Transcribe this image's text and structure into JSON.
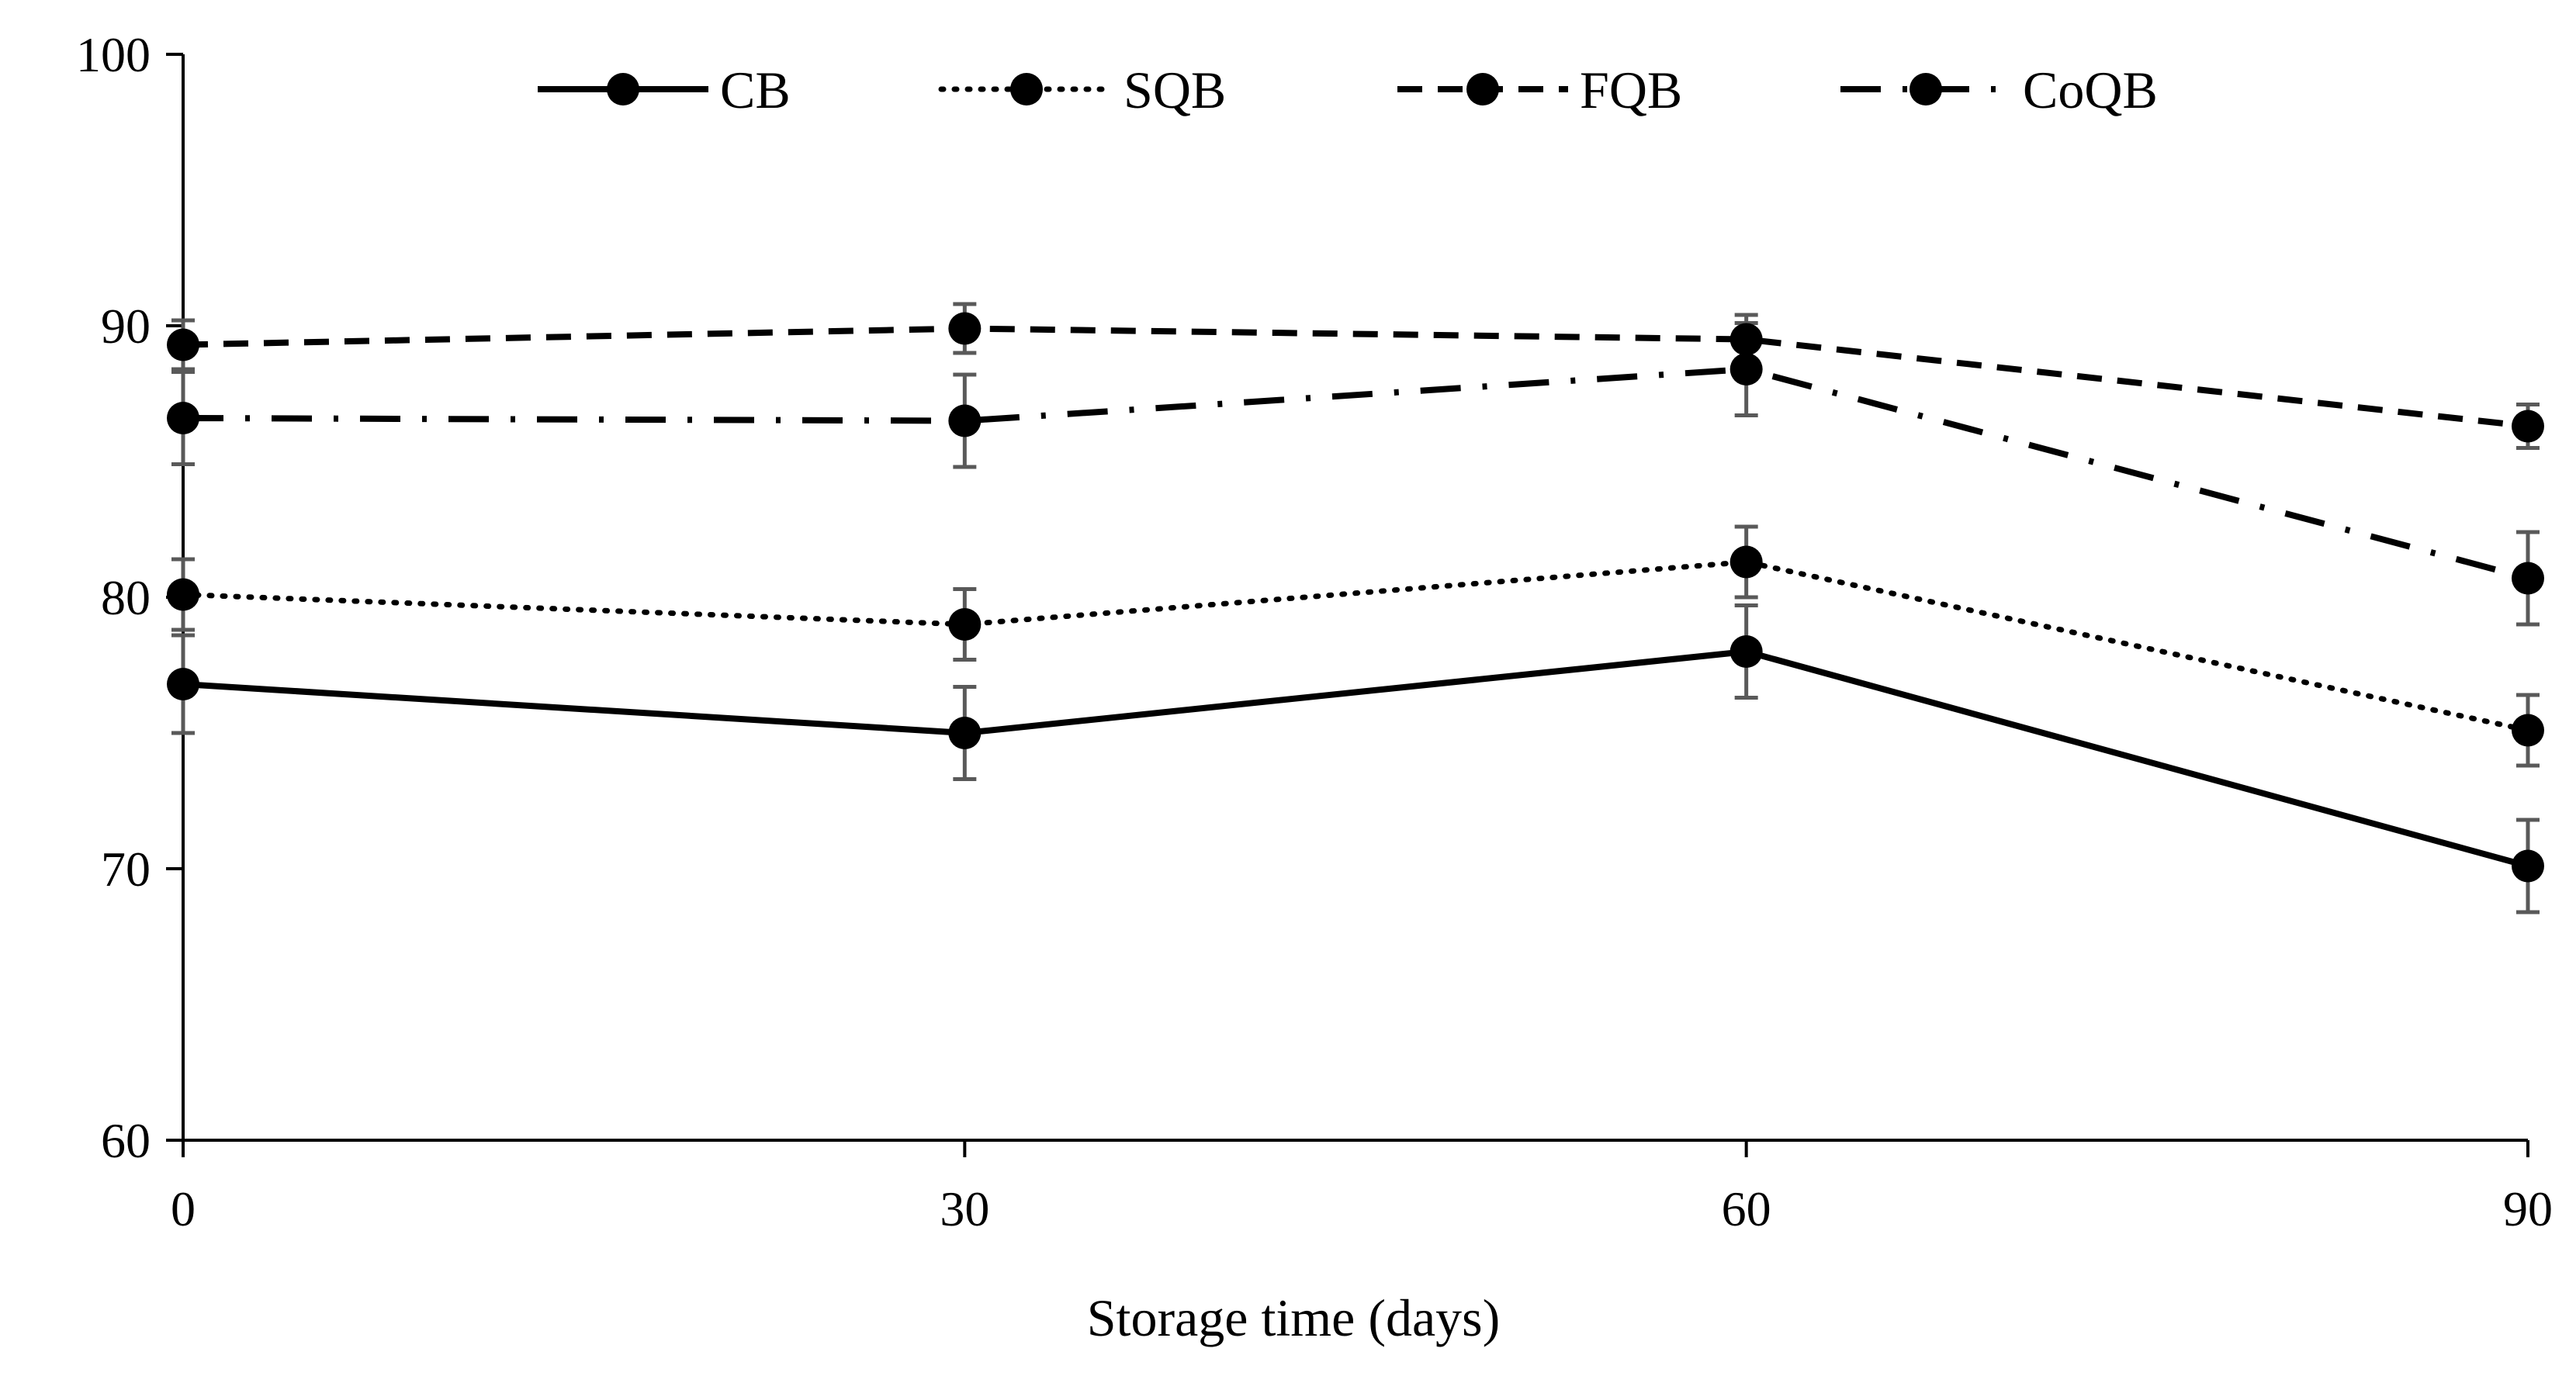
{
  "chart_data": {
    "type": "line",
    "title": "",
    "xlabel": "Storage time (days)",
    "ylabel": "",
    "x": [
      0,
      30,
      60,
      90
    ],
    "x_tick_labels": [
      "0",
      "30",
      "60",
      "90"
    ],
    "y_tick_labels": [
      "60",
      "70",
      "80",
      "90",
      "100"
    ],
    "xlim": [
      0,
      90
    ],
    "ylim": [
      60,
      100
    ],
    "y_ticks": [
      60,
      70,
      80,
      90,
      100
    ],
    "grid": false,
    "legend_position": "top",
    "series": [
      {
        "name": "CB",
        "style": "solid",
        "values": [
          76.8,
          75.0,
          78.0,
          70.1
        ],
        "errors": [
          1.8,
          1.7,
          1.7,
          1.7
        ]
      },
      {
        "name": "SQB",
        "style": "dotted",
        "values": [
          80.1,
          79.0,
          81.3,
          75.1
        ],
        "errors": [
          1.3,
          1.3,
          1.3,
          1.3
        ]
      },
      {
        "name": "FQB",
        "style": "dashed",
        "values": [
          89.3,
          89.9,
          89.5,
          86.3
        ],
        "errors": [
          0.9,
          0.9,
          0.9,
          0.8
        ]
      },
      {
        "name": "CoQB",
        "style": "dash-dot",
        "values": [
          86.6,
          86.5,
          88.4,
          80.7
        ],
        "errors": [
          1.7,
          1.7,
          1.7,
          1.7
        ]
      }
    ],
    "colors": {
      "line": "#000000",
      "error_bar": "#595959",
      "axis": "#000000"
    }
  }
}
